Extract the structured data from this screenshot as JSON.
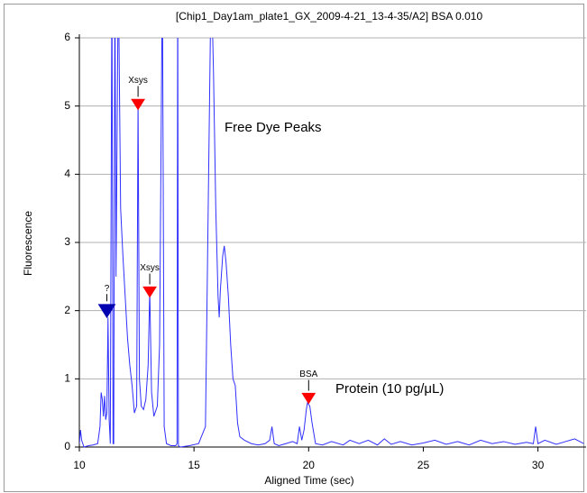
{
  "chart_data": {
    "type": "line",
    "title": "[Chip1_Day1am_plate1_GX_2009-4-21_13-4-35/A2] BSA 0.010",
    "x_label": "Aligned Time (sec)",
    "y_label": "Fluorescence",
    "annotations": [
      "Free Dye Peaks",
      "Protein (10 pg/μL)"
    ],
    "xlim": [
      10,
      32.1
    ],
    "ylim": [
      0,
      6
    ],
    "xticks": [
      10,
      15,
      20,
      25,
      30
    ],
    "yticks": [
      0,
      1,
      2,
      3,
      4,
      5,
      6
    ],
    "grid": true,
    "x": [
      10.0,
      10.05,
      10.1,
      10.2,
      10.4,
      10.6,
      10.8,
      10.9,
      10.95,
      11.0,
      11.05,
      11.1,
      11.15,
      11.2,
      11.25,
      11.3,
      11.35,
      11.42,
      11.47,
      11.5,
      11.55,
      11.6,
      11.7,
      11.8,
      11.9,
      12.0,
      12.1,
      12.2,
      12.3,
      12.4,
      12.5,
      12.56,
      12.62,
      12.7,
      12.8,
      12.9,
      13.0,
      13.07,
      13.15,
      13.25,
      13.4,
      13.5,
      13.62,
      13.7,
      13.8,
      14.0,
      14.2,
      14.26,
      14.29,
      14.32,
      14.4,
      14.8,
      15.2,
      15.5,
      15.75,
      15.85,
      15.95,
      16.05,
      16.1,
      16.15,
      16.25,
      16.32,
      16.4,
      16.5,
      16.6,
      16.7,
      16.8,
      16.9,
      17.0,
      17.2,
      17.5,
      17.8,
      18.1,
      18.3,
      18.4,
      18.5,
      18.7,
      19.0,
      19.3,
      19.5,
      19.6,
      19.7,
      19.8,
      19.9,
      19.95,
      20.05,
      20.15,
      20.3,
      20.6,
      21.0,
      21.5,
      21.8,
      22.2,
      22.6,
      23.0,
      23.3,
      23.6,
      24.0,
      24.5,
      25.0,
      25.5,
      26.0,
      26.5,
      27.0,
      27.5,
      28.0,
      28.5,
      29.0,
      29.5,
      29.8,
      29.9,
      30.0,
      30.3,
      30.8,
      31.2,
      31.6,
      32.0
    ],
    "series": [
      {
        "color": "#3030ff",
        "values": [
          0.05,
          0.25,
          0.1,
          0.0,
          0.02,
          0.03,
          0.05,
          0.3,
          0.8,
          0.7,
          0.45,
          0.75,
          0.4,
          0.5,
          1.9,
          0.4,
          0.05,
          7,
          0.05,
          0.05,
          7,
          2.5,
          7,
          3.5,
          2.8,
          2.2,
          1.6,
          1.2,
          0.9,
          0.5,
          0.6,
          5.1,
          1.0,
          0.6,
          0.55,
          0.7,
          1.2,
          2.3,
          0.8,
          0.45,
          0.6,
          1.5,
          7,
          0.3,
          0.05,
          0.02,
          0.02,
          0.05,
          7,
          0.02,
          0.0,
          0.02,
          0.05,
          0.3,
          7,
          5.5,
          3.5,
          2.2,
          1.9,
          2.3,
          2.8,
          2.95,
          2.7,
          2.2,
          1.5,
          1.0,
          0.9,
          0.35,
          0.15,
          0.1,
          0.05,
          0.03,
          0.05,
          0.1,
          0.3,
          0.05,
          0.02,
          0.05,
          0.08,
          0.05,
          0.3,
          0.1,
          0.25,
          0.55,
          0.65,
          0.6,
          0.35,
          0.05,
          0.03,
          0.08,
          0.03,
          0.1,
          0.05,
          0.1,
          0.03,
          0.12,
          0.04,
          0.08,
          0.03,
          0.06,
          0.1,
          0.04,
          0.08,
          0.03,
          0.1,
          0.05,
          0.08,
          0.04,
          0.07,
          0.05,
          0.3,
          0.05,
          0.1,
          0.04,
          0.08,
          0.12,
          0.05
        ]
      }
    ],
    "markers": [
      {
        "label": "?",
        "x": 11.2,
        "y": 1.9,
        "color": "#0000b0"
      },
      {
        "label": "Xsys",
        "x": 12.56,
        "y": 4.95,
        "color": "#ff0000"
      },
      {
        "label": "Xsys",
        "x": 13.07,
        "y": 2.2,
        "color": "#ff0000"
      },
      {
        "label": "BSA",
        "x": 20.0,
        "y": 0.64,
        "color": "#ff0000"
      }
    ]
  }
}
